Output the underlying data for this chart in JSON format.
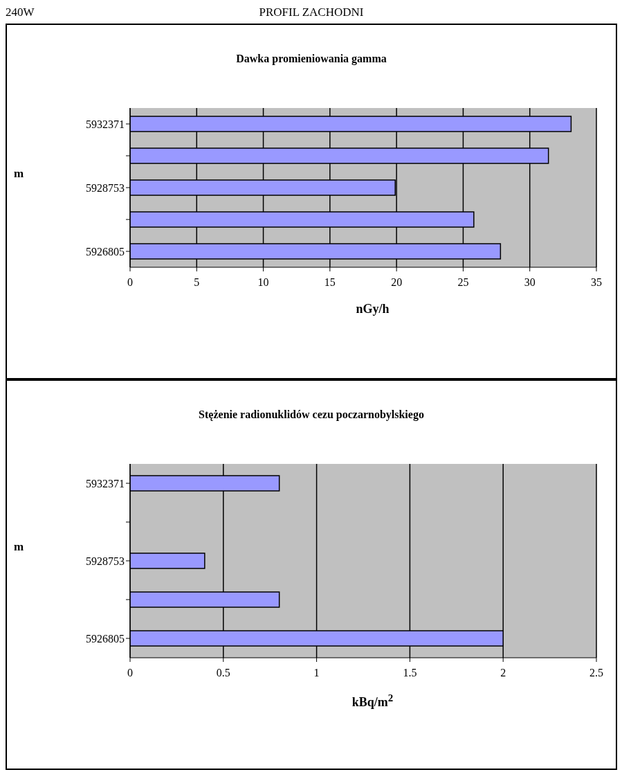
{
  "chart_data": [
    {
      "type": "bar",
      "orientation": "horizontal",
      "title": "Dawka promieniowania gamma",
      "annotations": [
        "240W",
        "PROFIL ZACHODNI"
      ],
      "xlabel": "nGy/h",
      "ylabel": "m",
      "categories": [
        "5932371",
        null,
        "5928753",
        null,
        "5926805"
      ],
      "values": [
        33.1,
        31.4,
        19.9,
        25.8,
        27.8
      ],
      "color": "#9999ff",
      "xlim": [
        0,
        35
      ],
      "xticks": [
        0,
        5,
        10,
        15,
        20,
        25,
        30,
        35
      ],
      "grid": "x"
    },
    {
      "type": "bar",
      "orientation": "horizontal",
      "title": "Stężenie radionuklidów cezu poczarnobylskiego",
      "xlabel": "kBq/m$^{2}$",
      "ylabel": "m",
      "categories": [
        "5932371",
        null,
        "5928753",
        null,
        "5926805"
      ],
      "values": [
        0.8,
        null,
        0.4,
        0.8,
        2
      ],
      "color": "#9999ff",
      "xlim": [
        0,
        2.5
      ],
      "xticks": [
        0,
        0.5,
        1,
        1.5,
        2,
        2.5
      ],
      "grid": "x"
    }
  ]
}
